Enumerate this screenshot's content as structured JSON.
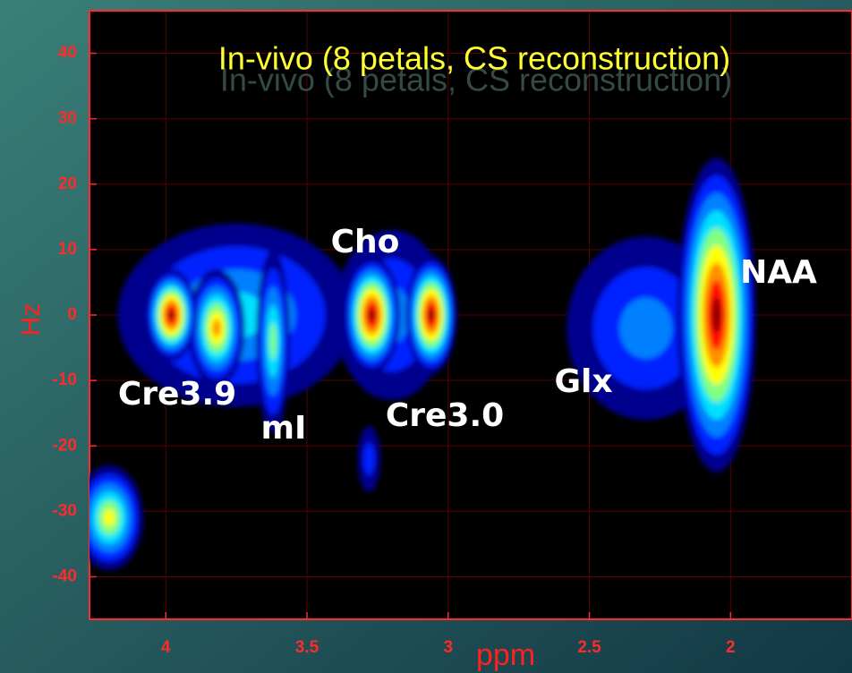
{
  "chart_data": {
    "type": "contour",
    "title": "In-vivo (8 petals, CS reconstruction)",
    "x_label": "ppm",
    "y_label": "Hz",
    "xlim": [
      4.27,
      1.57
    ],
    "ylim": [
      -46.5,
      46.5
    ],
    "xticks": [
      4,
      3.5,
      3,
      2.5,
      2
    ],
    "yticks": [
      40,
      30,
      20,
      10,
      0,
      -10,
      -20,
      -30,
      -40
    ],
    "grid": true,
    "colors": [
      "#00008f",
      "#0020ff",
      "#0080ff",
      "#00e0ff",
      "#80ff80",
      "#ffff00",
      "#ff9000",
      "#ff1000",
      "#8a0000"
    ],
    "peaks": {
      "x": [
        3.75,
        3.2,
        2.3,
        3.82,
        3.98,
        3.62,
        3.27,
        3.06,
        2.05,
        4.2,
        3.28
      ],
      "y": [
        0,
        0,
        -2,
        -2,
        0,
        -4,
        0,
        0,
        0,
        -31,
        -22
      ],
      "width": [
        0.42,
        0.2,
        0.28,
        0.1,
        0.09,
        0.06,
        0.1,
        0.09,
        0.14,
        0.12,
        0.04
      ],
      "height": [
        14,
        13,
        14,
        9,
        7,
        14,
        9,
        9,
        24,
        8,
        5
      ],
      "levels": [
        4,
        3,
        3,
        7,
        9,
        5,
        9,
        9,
        9,
        6,
        2
      ]
    },
    "annotations": [
      "Cre3.9",
      "mI",
      "Cho",
      "Cre3.0",
      "Glx",
      "NAA"
    ]
  }
}
